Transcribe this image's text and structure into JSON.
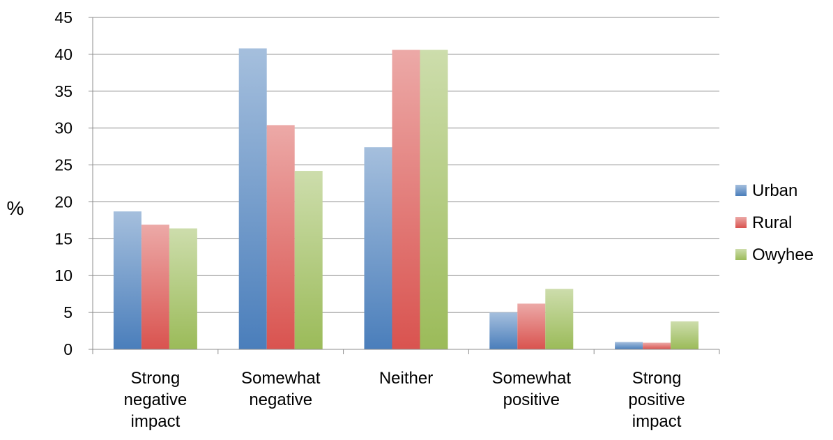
{
  "chart_data": {
    "type": "bar",
    "categories": [
      [
        "Strong",
        "negative",
        "impact"
      ],
      [
        "Somewhat",
        "negative"
      ],
      [
        "Neither"
      ],
      [
        "Somewhat",
        "positive"
      ],
      [
        "Strong",
        "positive",
        "impact"
      ]
    ],
    "series": [
      {
        "name": "Urban",
        "color": "#4a7ebb",
        "values": [
          18.7,
          40.8,
          27.4,
          5.0,
          1.0
        ]
      },
      {
        "name": "Rural",
        "color": "#d9534f",
        "values": [
          16.9,
          30.4,
          40.6,
          6.2,
          0.9
        ]
      },
      {
        "name": "Owyhee",
        "color": "#9bbb59",
        "values": [
          16.4,
          24.2,
          40.6,
          8.2,
          3.8
        ]
      }
    ],
    "ylabel": "%",
    "ylim": [
      0,
      45
    ],
    "yticks": [
      0,
      5,
      10,
      15,
      20,
      25,
      30,
      35,
      40,
      45
    ],
    "grid": true,
    "legend_position": "right"
  }
}
